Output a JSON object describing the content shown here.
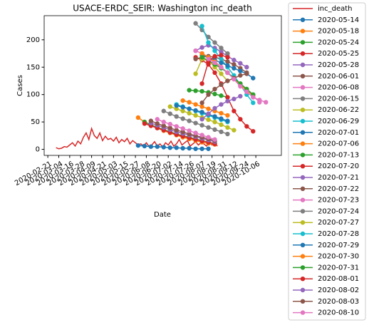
{
  "chart_data": {
    "type": "line",
    "title": "USACE-ERDC_SEIR: Washington inc_death",
    "xlabel": "Date",
    "ylabel": "Cases",
    "xlim": [
      "2020-02-17",
      "2020-11-03"
    ],
    "ylim": [
      -11,
      244
    ],
    "xticks": [
      "2020-02-21",
      "2020-03-04",
      "2020-03-16",
      "2020-03-28",
      "2020-04-09",
      "2020-04-21",
      "2020-05-03",
      "2020-05-15",
      "2020-05-27",
      "2020-06-08",
      "2020-06-20",
      "2020-07-02",
      "2020-07-14",
      "2020-07-26",
      "2020-08-07",
      "2020-08-19",
      "2020-08-31",
      "2020-09-12",
      "2020-09-24",
      "2020-10-06"
    ],
    "yticks": [
      0,
      50,
      100,
      150,
      200
    ],
    "legend": "outside-right",
    "grid": false,
    "series": [
      {
        "name": "inc_death",
        "color": "#d62728",
        "marker": "none",
        "x": [
          "2020-03-01",
          "2020-03-04",
          "2020-03-07",
          "2020-03-10",
          "2020-03-13",
          "2020-03-16",
          "2020-03-19",
          "2020-03-22",
          "2020-03-25",
          "2020-03-28",
          "2020-03-31",
          "2020-04-03",
          "2020-04-06",
          "2020-04-09",
          "2020-04-12",
          "2020-04-15",
          "2020-04-18",
          "2020-04-21",
          "2020-04-24",
          "2020-04-27",
          "2020-04-30",
          "2020-05-03",
          "2020-05-06",
          "2020-05-09",
          "2020-05-12",
          "2020-05-15",
          "2020-05-18",
          "2020-05-21",
          "2020-05-24",
          "2020-05-27",
          "2020-05-30",
          "2020-06-02",
          "2020-06-05",
          "2020-06-08",
          "2020-06-11",
          "2020-06-14",
          "2020-06-17",
          "2020-06-20",
          "2020-06-23",
          "2020-06-26",
          "2020-06-29",
          "2020-07-02",
          "2020-07-05",
          "2020-07-08",
          "2020-07-11",
          "2020-07-14",
          "2020-07-17",
          "2020-07-20",
          "2020-07-23",
          "2020-07-26",
          "2020-07-29",
          "2020-08-01",
          "2020-08-04",
          "2020-08-07",
          "2020-08-10",
          "2020-08-13",
          "2020-08-16",
          "2020-08-19",
          "2020-08-22",
          "2020-08-25"
        ],
        "values": [
          3,
          1,
          2,
          5,
          4,
          8,
          12,
          6,
          15,
          10,
          22,
          30,
          18,
          38,
          25,
          20,
          30,
          16,
          24,
          18,
          20,
          15,
          22,
          12,
          18,
          14,
          20,
          10,
          16,
          12,
          8,
          10,
          6,
          12,
          5,
          8,
          14,
          6,
          10,
          4,
          12,
          8,
          15,
          6,
          10,
          18,
          8,
          12,
          16,
          6,
          10,
          14,
          8,
          12,
          10,
          6,
          12,
          8,
          10,
          6
        ]
      },
      {
        "name": "2020-05-14",
        "color": "#1f77b4",
        "x": [
          "2020-05-30",
          "2020-06-06",
          "2020-06-13",
          "2020-06-20",
          "2020-06-27",
          "2020-07-04",
          "2020-07-11",
          "2020-07-18",
          "2020-07-25",
          "2020-08-01",
          "2020-08-08",
          "2020-08-15"
        ],
        "values": [
          7,
          6,
          5,
          5,
          4,
          3,
          3,
          2,
          2,
          1,
          1,
          1
        ]
      },
      {
        "name": "2020-05-18",
        "color": "#ff7f0e",
        "x": [
          "2020-05-30",
          "2020-06-06",
          "2020-06-13",
          "2020-06-20",
          "2020-06-27",
          "2020-07-04",
          "2020-07-11",
          "2020-07-18",
          "2020-07-25",
          "2020-08-01",
          "2020-08-08",
          "2020-08-15",
          "2020-08-22"
        ],
        "values": [
          58,
          50,
          44,
          39,
          34,
          30,
          26,
          22,
          19,
          16,
          13,
          11,
          9
        ]
      },
      {
        "name": "2020-05-24",
        "color": "#2ca02c",
        "x": [
          "2020-06-06",
          "2020-06-13",
          "2020-06-20",
          "2020-06-27",
          "2020-07-04",
          "2020-07-11",
          "2020-07-18",
          "2020-07-25",
          "2020-08-01",
          "2020-08-08",
          "2020-08-15",
          "2020-08-22"
        ],
        "values": [
          50,
          45,
          40,
          36,
          32,
          28,
          25,
          22,
          19,
          16,
          13,
          11
        ]
      },
      {
        "name": "2020-05-25",
        "color": "#d62728",
        "x": [
          "2020-06-06",
          "2020-06-13",
          "2020-06-20",
          "2020-06-27",
          "2020-07-04",
          "2020-07-11",
          "2020-07-18",
          "2020-07-25",
          "2020-08-01",
          "2020-08-08",
          "2020-08-15",
          "2020-08-22"
        ],
        "values": [
          47,
          43,
          39,
          35,
          31,
          27,
          24,
          21,
          18,
          15,
          13,
          10
        ]
      },
      {
        "name": "2020-05-28",
        "color": "#9467bd",
        "x": [
          "2020-06-13",
          "2020-06-20",
          "2020-06-27",
          "2020-07-04",
          "2020-07-11",
          "2020-07-18",
          "2020-07-25",
          "2020-08-01",
          "2020-08-08",
          "2020-08-15",
          "2020-08-22"
        ],
        "values": [
          48,
          44,
          40,
          36,
          32,
          29,
          26,
          23,
          20,
          17,
          14
        ]
      },
      {
        "name": "2020-06-01",
        "color": "#8c564b",
        "x": [
          "2020-06-13",
          "2020-06-20",
          "2020-06-27",
          "2020-07-04",
          "2020-07-11",
          "2020-07-18",
          "2020-07-25",
          "2020-08-01",
          "2020-08-08",
          "2020-08-15",
          "2020-08-22"
        ],
        "values": [
          52,
          47,
          43,
          39,
          35,
          32,
          28,
          25,
          22,
          19,
          16
        ]
      },
      {
        "name": "2020-06-08",
        "color": "#e377c2",
        "x": [
          "2020-06-20",
          "2020-06-27",
          "2020-07-04",
          "2020-07-11",
          "2020-07-18",
          "2020-07-25",
          "2020-08-01",
          "2020-08-08",
          "2020-08-15",
          "2020-08-22"
        ],
        "values": [
          55,
          50,
          46,
          42,
          38,
          34,
          30,
          26,
          22,
          18
        ]
      },
      {
        "name": "2020-06-15",
        "color": "#7f7f7f",
        "x": [
          "2020-06-27",
          "2020-07-04",
          "2020-07-11",
          "2020-07-18",
          "2020-07-25",
          "2020-08-01",
          "2020-08-08",
          "2020-08-15",
          "2020-08-22",
          "2020-08-29",
          "2020-09-05"
        ],
        "values": [
          70,
          65,
          60,
          56,
          52,
          48,
          44,
          40,
          36,
          32,
          28
        ]
      },
      {
        "name": "2020-06-22",
        "color": "#bcbd22",
        "x": [
          "2020-07-04",
          "2020-07-11",
          "2020-07-18",
          "2020-07-25",
          "2020-08-01",
          "2020-08-08",
          "2020-08-15",
          "2020-08-22",
          "2020-08-29",
          "2020-09-05",
          "2020-09-12"
        ],
        "values": [
          78,
          74,
          70,
          66,
          62,
          58,
          54,
          50,
          45,
          40,
          35
        ]
      },
      {
        "name": "2020-06-29",
        "color": "#17becf",
        "x": [
          "2020-07-11",
          "2020-07-18",
          "2020-07-25",
          "2020-08-01",
          "2020-08-08",
          "2020-08-15",
          "2020-08-22",
          "2020-08-29",
          "2020-09-05"
        ],
        "values": [
          82,
          78,
          74,
          70,
          66,
          62,
          58,
          54,
          50
        ]
      },
      {
        "name": "2020-07-01",
        "color": "#1f77b4",
        "x": [
          "2020-07-11",
          "2020-07-18",
          "2020-07-25",
          "2020-08-01",
          "2020-08-08",
          "2020-08-15",
          "2020-08-22",
          "2020-08-29",
          "2020-09-05"
        ],
        "values": [
          80,
          77,
          74,
          71,
          68,
          64,
          60,
          56,
          52
        ]
      },
      {
        "name": "2020-07-06",
        "color": "#ff7f0e",
        "x": [
          "2020-07-18",
          "2020-07-25",
          "2020-08-01",
          "2020-08-08",
          "2020-08-15",
          "2020-08-22",
          "2020-08-29",
          "2020-09-05"
        ],
        "values": [
          89,
          86,
          82,
          78,
          74,
          70,
          66,
          62
        ]
      },
      {
        "name": "2020-07-13",
        "color": "#2ca02c",
        "x": [
          "2020-07-25",
          "2020-08-01",
          "2020-08-08",
          "2020-08-15",
          "2020-08-22",
          "2020-08-29",
          "2020-09-05"
        ],
        "values": [
          108,
          107,
          106,
          104,
          101,
          98,
          95
        ]
      },
      {
        "name": "2020-07-20",
        "color": "#d62728",
        "x": [
          "2020-08-01",
          "2020-08-08",
          "2020-08-15",
          "2020-08-22",
          "2020-08-29",
          "2020-09-05",
          "2020-09-12",
          "2020-09-19",
          "2020-09-26",
          "2020-10-03"
        ],
        "values": [
          168,
          163,
          155,
          140,
          120,
          95,
          70,
          55,
          42,
          33
        ]
      },
      {
        "name": "2020-07-21",
        "color": "#9467bd",
        "x": [
          "2020-08-01",
          "2020-08-08",
          "2020-08-15",
          "2020-08-22",
          "2020-08-29",
          "2020-09-05",
          "2020-09-12",
          "2020-09-19",
          "2020-09-26"
        ],
        "values": [
          180,
          186,
          190,
          185,
          178,
          170,
          163,
          157,
          150
        ]
      },
      {
        "name": "2020-07-22",
        "color": "#8c564b",
        "x": [
          "2020-08-01",
          "2020-08-08",
          "2020-08-15",
          "2020-08-22",
          "2020-08-29",
          "2020-09-05",
          "2020-09-12",
          "2020-09-19",
          "2020-09-26"
        ],
        "values": [
          165,
          168,
          170,
          168,
          165,
          160,
          155,
          148,
          140
        ]
      },
      {
        "name": "2020-07-23",
        "color": "#e377c2",
        "x": [
          "2020-08-01",
          "2020-08-08",
          "2020-08-15",
          "2020-08-22",
          "2020-08-29",
          "2020-09-05",
          "2020-09-12",
          "2020-09-19",
          "2020-09-26",
          "2020-10-03",
          "2020-10-10"
        ],
        "values": [
          180,
          175,
          168,
          160,
          150,
          140,
          130,
          120,
          110,
          98,
          86
        ]
      },
      {
        "name": "2020-07-24",
        "color": "#7f7f7f",
        "x": [
          "2020-08-01",
          "2020-08-08",
          "2020-08-15",
          "2020-08-22",
          "2020-08-29",
          "2020-09-05"
        ],
        "values": [
          230,
          218,
          205,
          195,
          185,
          175
        ]
      },
      {
        "name": "2020-07-27",
        "color": "#bcbd22",
        "x": [
          "2020-08-01",
          "2020-08-08",
          "2020-08-15",
          "2020-08-22",
          "2020-08-29",
          "2020-09-05"
        ],
        "values": [
          138,
          165,
          162,
          150,
          138,
          125
        ]
      },
      {
        "name": "2020-07-28",
        "color": "#17becf",
        "x": [
          "2020-08-08",
          "2020-08-15",
          "2020-08-22",
          "2020-08-29",
          "2020-09-05",
          "2020-09-12",
          "2020-09-19",
          "2020-09-26",
          "2020-10-03"
        ],
        "values": [
          225,
          195,
          180,
          165,
          150,
          135,
          118,
          100,
          85
        ]
      },
      {
        "name": "2020-07-29",
        "color": "#1f77b4",
        "x": [
          "2020-08-08",
          "2020-08-15",
          "2020-08-22",
          "2020-08-29",
          "2020-09-05",
          "2020-09-12",
          "2020-09-19",
          "2020-09-26",
          "2020-10-03"
        ],
        "values": [
          172,
          168,
          163,
          158,
          153,
          148,
          143,
          138,
          130
        ]
      },
      {
        "name": "2020-07-30",
        "color": "#ff7f0e",
        "x": [
          "2020-08-08",
          "2020-08-15",
          "2020-08-22",
          "2020-08-29",
          "2020-09-05",
          "2020-09-12",
          "2020-09-19",
          "2020-09-26",
          "2020-10-03"
        ],
        "values": [
          175,
          168,
          160,
          150,
          140,
          130,
          118,
          108,
          98
        ]
      },
      {
        "name": "2020-07-31",
        "color": "#2ca02c",
        "x": [
          "2020-08-08",
          "2020-08-15",
          "2020-08-22",
          "2020-08-29",
          "2020-09-05",
          "2020-09-12",
          "2020-09-19",
          "2020-09-26",
          "2020-10-03"
        ],
        "values": [
          168,
          162,
          155,
          148,
          140,
          130,
          120,
          110,
          100
        ]
      },
      {
        "name": "2020-08-01",
        "color": "#d62728",
        "x": [
          "2020-08-08",
          "2020-08-15",
          "2020-08-22",
          "2020-08-29",
          "2020-09-05"
        ],
        "values": [
          120,
          160,
          170,
          172,
          168
        ]
      },
      {
        "name": "2020-08-02",
        "color": "#9467bd",
        "x": [
          "2020-08-08",
          "2020-08-15",
          "2020-08-22",
          "2020-08-29",
          "2020-09-05",
          "2020-09-12",
          "2020-09-19"
        ],
        "values": [
          55,
          65,
          75,
          82,
          88,
          92,
          97
        ]
      },
      {
        "name": "2020-08-03",
        "color": "#8c564b",
        "x": [
          "2020-08-08",
          "2020-08-15",
          "2020-08-22",
          "2020-08-29",
          "2020-09-05",
          "2020-09-12",
          "2020-09-19",
          "2020-09-26"
        ],
        "values": [
          85,
          100,
          110,
          118,
          125,
          130,
          135,
          138
        ]
      },
      {
        "name": "2020-08-10",
        "color": "#e377c2",
        "x": [
          "2020-08-15",
          "2020-08-22",
          "2020-08-29",
          "2020-09-05",
          "2020-09-12",
          "2020-09-19",
          "2020-09-26",
          "2020-10-03",
          "2020-10-10",
          "2020-10-17"
        ],
        "values": [
          165,
          158,
          150,
          140,
          128,
          115,
          105,
          95,
          90,
          86
        ]
      }
    ]
  }
}
